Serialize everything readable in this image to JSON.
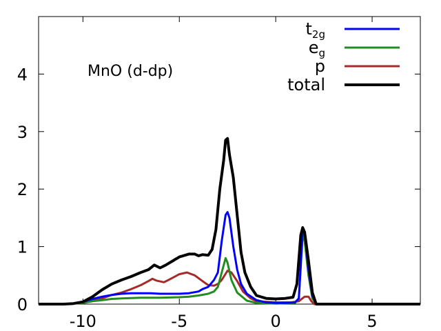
{
  "chart_data": {
    "type": "line",
    "title": "",
    "annotation": "MnO (d-dp)",
    "xlabel": "",
    "ylabel": "",
    "xlim": [
      -12.3,
      7.5
    ],
    "ylim": [
      0,
      5
    ],
    "xticks": [
      -10,
      -5,
      0,
      5
    ],
    "xtick_labels": [
      "-10",
      "-5",
      "0",
      "5"
    ],
    "yticks": [
      0,
      1,
      2,
      3,
      4
    ],
    "ytick_labels": [
      "0",
      "1",
      "2",
      "3",
      "4"
    ],
    "grid": false,
    "legend_position": "top-right",
    "series": [
      {
        "name": "t2g",
        "label_main": "t",
        "label_sub": "2g",
        "color": "#0000ff",
        "points": [
          [
            -12.3,
            0
          ],
          [
            -11,
            0
          ],
          [
            -10.5,
            0.01
          ],
          [
            -10,
            0.04
          ],
          [
            -9.5,
            0.09
          ],
          [
            -9,
            0.13
          ],
          [
            -8.5,
            0.16
          ],
          [
            -8,
            0.18
          ],
          [
            -7.5,
            0.19
          ],
          [
            -7,
            0.19
          ],
          [
            -6.5,
            0.19
          ],
          [
            -6,
            0.18
          ],
          [
            -5.5,
            0.18
          ],
          [
            -5,
            0.18
          ],
          [
            -4.5,
            0.19
          ],
          [
            -4,
            0.22
          ],
          [
            -3.8,
            0.26
          ],
          [
            -3.5,
            0.3
          ],
          [
            -3.2,
            0.42
          ],
          [
            -3,
            0.55
          ],
          [
            -2.8,
            1.1
          ],
          [
            -2.6,
            1.55
          ],
          [
            -2.5,
            1.6
          ],
          [
            -2.4,
            1.5
          ],
          [
            -2.2,
            1.0
          ],
          [
            -2,
            0.6
          ],
          [
            -1.8,
            0.35
          ],
          [
            -1.5,
            0.18
          ],
          [
            -1,
            0.07
          ],
          [
            -0.5,
            0.03
          ],
          [
            0,
            0.02
          ],
          [
            0.5,
            0.02
          ],
          [
            1,
            0.03
          ],
          [
            1.2,
            0.1
          ],
          [
            1.4,
            1.3
          ],
          [
            1.5,
            1.25
          ],
          [
            1.7,
            0.6
          ],
          [
            1.9,
            0.15
          ],
          [
            2.1,
            0
          ],
          [
            3,
            0
          ],
          [
            5,
            0
          ],
          [
            7.5,
            0
          ]
        ]
      },
      {
        "name": "eg",
        "label_main": "e",
        "label_sub": "g",
        "color": "#228b22",
        "points": [
          [
            -12.3,
            0
          ],
          [
            -11,
            0
          ],
          [
            -10.5,
            0.01
          ],
          [
            -10,
            0.02
          ],
          [
            -9.5,
            0.05
          ],
          [
            -9,
            0.07
          ],
          [
            -8.5,
            0.09
          ],
          [
            -8,
            0.1
          ],
          [
            -7,
            0.11
          ],
          [
            -6,
            0.11
          ],
          [
            -5,
            0.12
          ],
          [
            -4.5,
            0.13
          ],
          [
            -4,
            0.15
          ],
          [
            -3.5,
            0.18
          ],
          [
            -3.2,
            0.22
          ],
          [
            -3,
            0.3
          ],
          [
            -2.8,
            0.55
          ],
          [
            -2.6,
            0.8
          ],
          [
            -2.5,
            0.72
          ],
          [
            -2.3,
            0.42
          ],
          [
            -2,
            0.2
          ],
          [
            -1.5,
            0.06
          ],
          [
            -1,
            0.02
          ],
          [
            0,
            0.01
          ],
          [
            1,
            0.02
          ],
          [
            1.2,
            0.1
          ],
          [
            1.4,
            1.2
          ],
          [
            1.5,
            1.1
          ],
          [
            1.7,
            0.5
          ],
          [
            1.9,
            0.1
          ],
          [
            2.1,
            0
          ],
          [
            3,
            0
          ],
          [
            5,
            0
          ],
          [
            7.5,
            0
          ]
        ]
      },
      {
        "name": "p",
        "label_main": "p",
        "label_sub": "",
        "color": "#a52a2a",
        "points": [
          [
            -12.3,
            0
          ],
          [
            -11,
            0
          ],
          [
            -10.5,
            0.01
          ],
          [
            -10,
            0.02
          ],
          [
            -9.5,
            0.06
          ],
          [
            -9,
            0.1
          ],
          [
            -8.5,
            0.16
          ],
          [
            -8,
            0.2
          ],
          [
            -7.5,
            0.26
          ],
          [
            -7,
            0.33
          ],
          [
            -6.6,
            0.4
          ],
          [
            -6.4,
            0.44
          ],
          [
            -6.2,
            0.41
          ],
          [
            -5.8,
            0.38
          ],
          [
            -5.5,
            0.43
          ],
          [
            -5,
            0.52
          ],
          [
            -4.6,
            0.55
          ],
          [
            -4.2,
            0.5
          ],
          [
            -3.8,
            0.4
          ],
          [
            -3.5,
            0.33
          ],
          [
            -3.2,
            0.32
          ],
          [
            -3,
            0.35
          ],
          [
            -2.8,
            0.42
          ],
          [
            -2.5,
            0.58
          ],
          [
            -2.3,
            0.55
          ],
          [
            -2,
            0.4
          ],
          [
            -1.7,
            0.22
          ],
          [
            -1.3,
            0.1
          ],
          [
            -1,
            0.05
          ],
          [
            0,
            0.03
          ],
          [
            0.8,
            0.03
          ],
          [
            1.2,
            0.05
          ],
          [
            1.5,
            0.13
          ],
          [
            1.7,
            0.13
          ],
          [
            1.85,
            0.05
          ],
          [
            2,
            0
          ],
          [
            3,
            0
          ],
          [
            5,
            0
          ],
          [
            7.5,
            0
          ]
        ]
      },
      {
        "name": "total",
        "label_main": "total",
        "label_sub": "",
        "color": "#000000",
        "points": [
          [
            -12.3,
            0
          ],
          [
            -11.5,
            0
          ],
          [
            -11,
            0
          ],
          [
            -10.5,
            0.01
          ],
          [
            -10,
            0.04
          ],
          [
            -9.5,
            0.13
          ],
          [
            -9,
            0.25
          ],
          [
            -8.5,
            0.35
          ],
          [
            -8,
            0.42
          ],
          [
            -7.5,
            0.48
          ],
          [
            -7,
            0.55
          ],
          [
            -6.6,
            0.6
          ],
          [
            -6.3,
            0.68
          ],
          [
            -6,
            0.63
          ],
          [
            -5.7,
            0.68
          ],
          [
            -5.3,
            0.76
          ],
          [
            -5,
            0.82
          ],
          [
            -4.5,
            0.87
          ],
          [
            -4.2,
            0.87
          ],
          [
            -4,
            0.84
          ],
          [
            -3.8,
            0.86
          ],
          [
            -3.5,
            0.85
          ],
          [
            -3.3,
            0.95
          ],
          [
            -3.1,
            1.3
          ],
          [
            -2.9,
            2.0
          ],
          [
            -2.7,
            2.5
          ],
          [
            -2.6,
            2.85
          ],
          [
            -2.5,
            2.88
          ],
          [
            -2.4,
            2.6
          ],
          [
            -2.2,
            2.2
          ],
          [
            -2,
            1.55
          ],
          [
            -1.8,
            0.9
          ],
          [
            -1.6,
            0.55
          ],
          [
            -1.3,
            0.3
          ],
          [
            -1,
            0.15
          ],
          [
            -0.5,
            0.1
          ],
          [
            0,
            0.09
          ],
          [
            0.5,
            0.1
          ],
          [
            0.9,
            0.12
          ],
          [
            1.1,
            0.35
          ],
          [
            1.3,
            1.2
          ],
          [
            1.4,
            1.33
          ],
          [
            1.5,
            1.25
          ],
          [
            1.7,
            0.75
          ],
          [
            1.9,
            0.2
          ],
          [
            2.1,
            0
          ],
          [
            3,
            0
          ],
          [
            5,
            0
          ],
          [
            7.5,
            0
          ]
        ]
      }
    ]
  }
}
